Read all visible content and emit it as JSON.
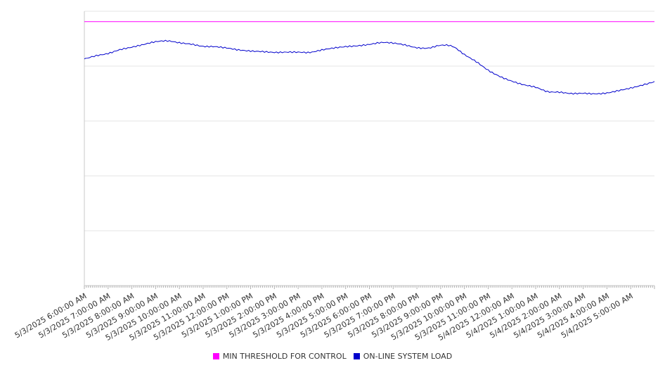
{
  "chart_data": {
    "type": "line",
    "x_start": "5/3/2025 6:00:00 AM",
    "x_end": "5/4/2025 6:00:00 AM",
    "tick_labels": [
      "5/3/2025 6:00:00 AM",
      "5/3/2025 7:00:00 AM",
      "5/3/2025 8:00:00 AM",
      "5/3/2025 9:00:00 AM",
      "5/3/2025 10:00:00 AM",
      "5/3/2025 11:00:00 AM",
      "5/3/2025 12:00:00 PM",
      "5/3/2025 1:00:00 PM",
      "5/3/2025 2:00:00 PM",
      "5/3/2025 3:00:00 PM",
      "5/3/2025 4:00:00 PM",
      "5/3/2025 5:00:00 PM",
      "5/3/2025 6:00:00 PM",
      "5/3/2025 7:00:00 PM",
      "5/3/2025 8:00:00 PM",
      "5/3/2025 9:00:00 PM",
      "5/3/2025 10:00:00 PM",
      "5/3/2025 11:00:00 PM",
      "5/4/2025 12:00:00 AM",
      "5/4/2025 1:00:00 AM",
      "5/4/2025 2:00:00 AM",
      "5/4/2025 3:00:00 AM",
      "5/4/2025 4:00:00 AM",
      "5/4/2025 5:00:00 AM"
    ],
    "y_range": [
      0,
      1
    ],
    "y_tick_labels_shown": false,
    "grid": "horizontal",
    "legend_position": "bottom-center",
    "series": [
      {
        "name": "MIN THRESHOLD FOR CONTROL",
        "color": "#ff00ff",
        "x": [
          "5/3/2025 6:00:00 AM",
          "5/4/2025 6:00:00 AM"
        ],
        "y": [
          0.962,
          0.962
        ]
      },
      {
        "name": "ON-LINE SYSTEM LOAD",
        "color": "#0000cc",
        "x": [
          "5/3/2025 6:00:00 AM",
          "5/3/2025 6:30:00 AM",
          "5/3/2025 7:00:00 AM",
          "5/3/2025 7:30:00 AM",
          "5/3/2025 8:00:00 AM",
          "5/3/2025 8:30:00 AM",
          "5/3/2025 9:00:00 AM",
          "5/3/2025 9:30:00 AM",
          "5/3/2025 10:00:00 AM",
          "5/3/2025 10:30:00 AM",
          "5/3/2025 11:00:00 AM",
          "5/3/2025 11:30:00 AM",
          "5/3/2025 12:00:00 PM",
          "5/3/2025 12:30:00 PM",
          "5/3/2025 1:00:00 PM",
          "5/3/2025 1:30:00 PM",
          "5/3/2025 2:00:00 PM",
          "5/3/2025 2:30:00 PM",
          "5/3/2025 3:00:00 PM",
          "5/3/2025 3:30:00 PM",
          "5/3/2025 4:00:00 PM",
          "5/3/2025 4:30:00 PM",
          "5/3/2025 5:00:00 PM",
          "5/3/2025 5:30:00 PM",
          "5/3/2025 6:00:00 PM",
          "5/3/2025 6:30:00 PM",
          "5/3/2025 7:00:00 PM",
          "5/3/2025 7:30:00 PM",
          "5/3/2025 8:00:00 PM",
          "5/3/2025 8:30:00 PM",
          "5/3/2025 9:00:00 PM",
          "5/3/2025 9:30:00 PM",
          "5/3/2025 10:00:00 PM",
          "5/3/2025 10:30:00 PM",
          "5/3/2025 11:00:00 PM",
          "5/3/2025 11:30:00 PM",
          "5/4/2025 12:00:00 AM",
          "5/4/2025 12:30:00 AM",
          "5/4/2025 1:00:00 AM",
          "5/4/2025 1:30:00 AM",
          "5/4/2025 2:00:00 AM",
          "5/4/2025 2:30:00 AM",
          "5/4/2025 3:00:00 AM",
          "5/4/2025 3:30:00 AM",
          "5/4/2025 4:00:00 AM",
          "5/4/2025 4:30:00 AM",
          "5/4/2025 5:00:00 AM",
          "5/4/2025 5:30:00 AM",
          "5/4/2025 6:00:00 AM"
        ],
        "y": [
          0.826,
          0.838,
          0.846,
          0.86,
          0.869,
          0.879,
          0.889,
          0.892,
          0.885,
          0.88,
          0.872,
          0.871,
          0.866,
          0.859,
          0.855,
          0.853,
          0.85,
          0.851,
          0.851,
          0.85,
          0.859,
          0.866,
          0.871,
          0.874,
          0.879,
          0.886,
          0.884,
          0.877,
          0.867,
          0.866,
          0.876,
          0.872,
          0.842,
          0.816,
          0.785,
          0.762,
          0.745,
          0.732,
          0.723,
          0.707,
          0.705,
          0.7,
          0.701,
          0.699,
          0.702,
          0.711,
          0.72,
          0.731,
          0.743
        ]
      }
    ]
  }
}
